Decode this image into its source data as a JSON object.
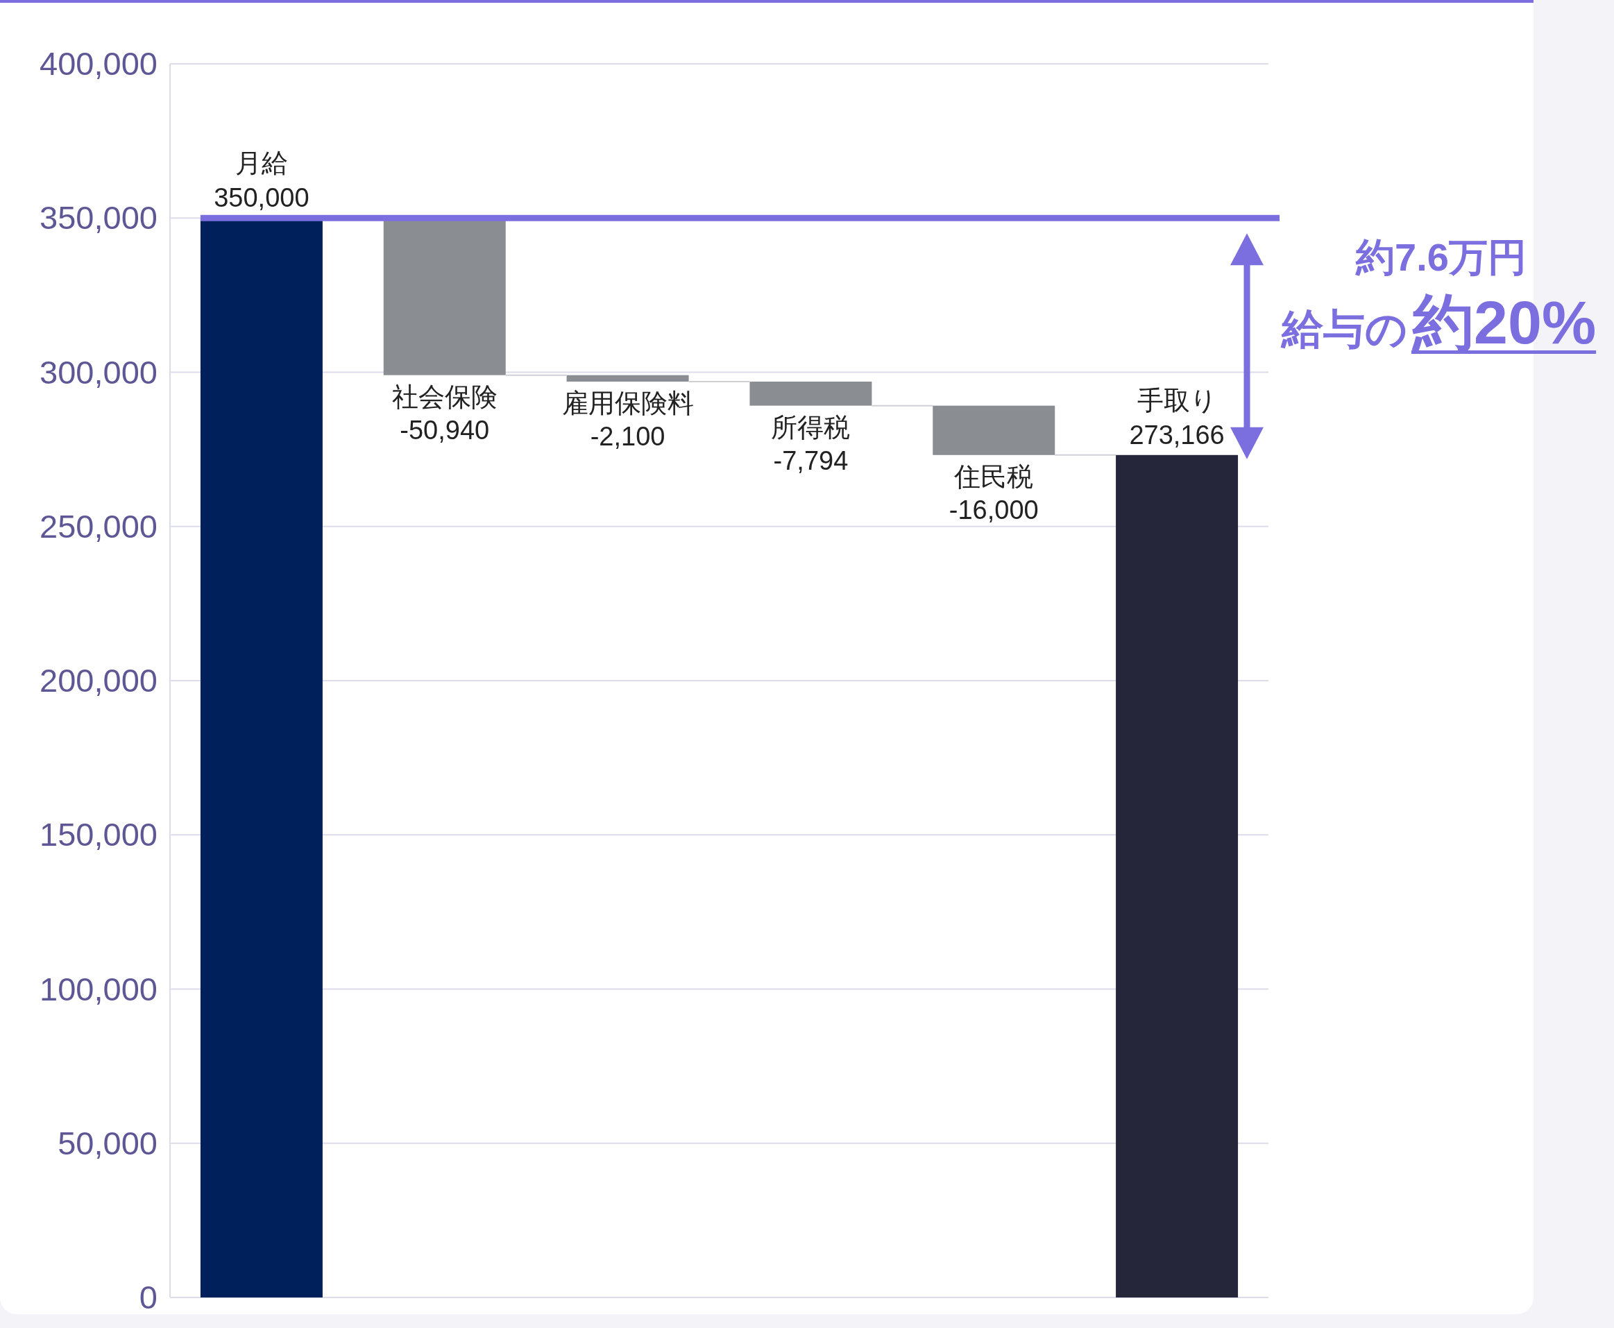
{
  "chart_data": {
    "type": "bar",
    "categories": [
      "月給",
      "社会保険",
      "雇用保険料",
      "所得税",
      "住民税",
      "手取り"
    ],
    "values": [
      350000,
      -50940,
      -2100,
      -7794,
      -16000,
      273166
    ],
    "base": [
      0,
      350000,
      299060,
      296960,
      289166,
      0
    ],
    "colors": [
      "#00205b",
      "#8a8d91",
      "#8a8d91",
      "#8a8d91",
      "#8a8d91",
      "#26263a"
    ],
    "value_labels": [
      "350,000",
      "-50,940",
      "-2,100",
      "-7,794",
      "-16,000",
      "273,166"
    ],
    "ylim": [
      0,
      400000
    ],
    "yticks": [
      {
        "value": 0,
        "label": "0"
      },
      {
        "value": 50000,
        "label": "50,000"
      },
      {
        "value": 100000,
        "label": "100,000"
      },
      {
        "value": 150000,
        "label": "150,000"
      },
      {
        "value": 200000,
        "label": "200,000"
      },
      {
        "value": 250000,
        "label": "250,000"
      },
      {
        "value": 300000,
        "label": "300,000"
      },
      {
        "value": 350000,
        "label": "350,000"
      },
      {
        "value": 400000,
        "label": "400,000"
      }
    ],
    "grid": "y",
    "tick_labels": "y",
    "ref_lines": [
      {
        "axis": "y",
        "value": 350000,
        "color": "#7b6fe0"
      }
    ],
    "annotations": [
      "約7.6万円",
      "給与の",
      "約20%"
    ]
  }
}
